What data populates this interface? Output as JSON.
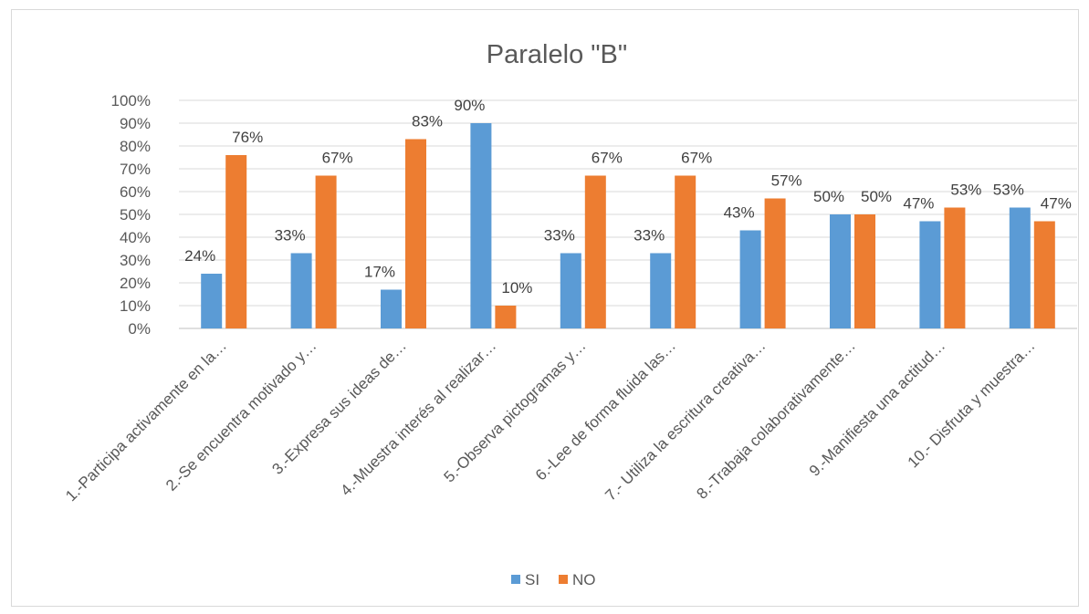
{
  "chart_data": {
    "type": "bar",
    "title": "Paralelo  \"B\"",
    "xlabel": "",
    "ylabel": "",
    "ylim": [
      0,
      100
    ],
    "yticks": [
      "0%",
      "10%",
      "20%",
      "30%",
      "40%",
      "50%",
      "60%",
      "70%",
      "80%",
      "90%",
      "100%"
    ],
    "grid": true,
    "legend_position": "bottom",
    "categories": [
      "1.-Participa activamente en la…",
      "2.-Se encuentra motivado y…",
      "3.-Expresa sus ideas de…",
      "4.-Muestra interés al realizar…",
      "5.-Observa pictogramas y…",
      "6.-Lee de forma fluida las…",
      "7.- Utiliza la escritura creativa…",
      "8.-Trabaja colaborativamente…",
      "9.-Manifiesta una actitud…",
      "10.- Disfruta y muestra…"
    ],
    "series": [
      {
        "name": "SI",
        "color": "#5b9bd5",
        "values": [
          24,
          33,
          17,
          90,
          33,
          33,
          43,
          50,
          47,
          53
        ],
        "labels": [
          "24%",
          "33%",
          "17%",
          "90%",
          "33%",
          "33%",
          "43%",
          "50%",
          "47%",
          "53%"
        ]
      },
      {
        "name": "NO",
        "color": "#ed7d31",
        "values": [
          76,
          67,
          83,
          10,
          67,
          67,
          57,
          50,
          53,
          47
        ],
        "labels": [
          "76%",
          "67%",
          "83%",
          "10%",
          "67%",
          "67%",
          "57%",
          "50%",
          "53%",
          "47%"
        ]
      }
    ]
  }
}
